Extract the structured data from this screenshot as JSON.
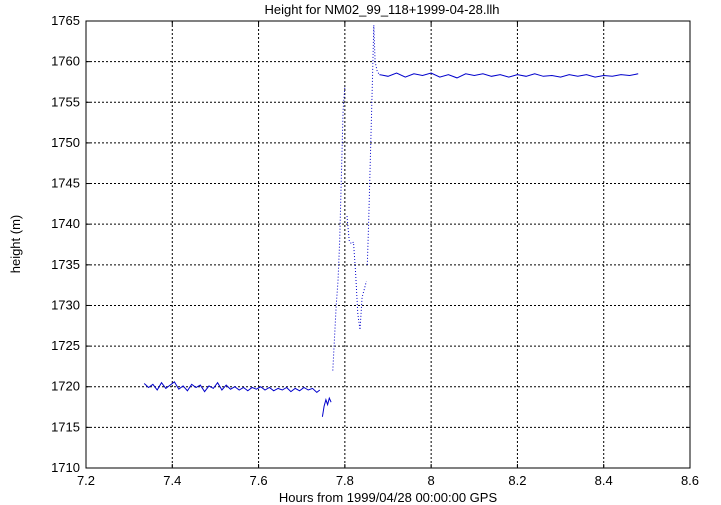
{
  "chart_data": {
    "type": "line",
    "title": "Height for NM02_99_118+1999-04-28.llh",
    "xlabel": "Hours from 1999/04/28 00:00:00 GPS",
    "ylabel": "height (m)",
    "xlim": [
      7.2,
      8.6
    ],
    "ylim": [
      1710,
      1765
    ],
    "xticks": [
      "7.2",
      "7.4",
      "7.6",
      "7.8",
      "8",
      "8.2",
      "8.4",
      "8.6"
    ],
    "yticks": [
      "1710",
      "1715",
      "1720",
      "1725",
      "1730",
      "1735",
      "1740",
      "1745",
      "1750",
      "1755",
      "1760",
      "1765"
    ],
    "grid": true,
    "line_color": "#0000cc",
    "series": [
      {
        "values": [
          [
            7.335,
            1720.4
          ],
          [
            7.345,
            1719.9
          ],
          [
            7.355,
            1720.3
          ],
          [
            7.365,
            1719.6
          ],
          [
            7.375,
            1720.5
          ],
          [
            7.385,
            1719.8
          ],
          [
            7.395,
            1720.2
          ],
          [
            7.405,
            1720.6
          ],
          [
            7.415,
            1719.7
          ],
          [
            7.425,
            1720.1
          ],
          [
            7.435,
            1719.5
          ],
          [
            7.445,
            1720.3
          ],
          [
            7.455,
            1719.9
          ],
          [
            7.465,
            1720.2
          ],
          [
            7.475,
            1719.4
          ],
          [
            7.485,
            1720.1
          ],
          [
            7.495,
            1719.8
          ],
          [
            7.505,
            1720.5
          ],
          [
            7.515,
            1719.6
          ],
          [
            7.525,
            1720.2
          ],
          [
            7.535,
            1719.7
          ],
          [
            7.545,
            1720.0
          ],
          [
            7.555,
            1719.6
          ],
          [
            7.565,
            1719.9
          ],
          [
            7.575,
            1719.5
          ],
          [
            7.585,
            1719.9
          ],
          [
            7.595,
            1719.7
          ],
          [
            7.605,
            1720.0
          ],
          [
            7.615,
            1719.6
          ],
          [
            7.625,
            1719.9
          ],
          [
            7.635,
            1719.5
          ],
          [
            7.645,
            1719.8
          ],
          [
            7.655,
            1719.6
          ],
          [
            7.665,
            1719.9
          ],
          [
            7.675,
            1719.4
          ],
          [
            7.685,
            1719.8
          ],
          [
            7.695,
            1719.5
          ],
          [
            7.705,
            1719.9
          ],
          [
            7.715,
            1719.6
          ],
          [
            7.725,
            1719.8
          ],
          [
            7.735,
            1719.3
          ],
          [
            7.742,
            1719.6
          ]
        ]
      },
      {
        "values": [
          [
            7.748,
            1716.3
          ],
          [
            7.752,
            1717.6
          ],
          [
            7.756,
            1718.4
          ],
          [
            7.76,
            1717.8
          ],
          [
            7.764,
            1718.6
          ],
          [
            7.768,
            1718.1
          ]
        ]
      },
      {
        "values": [
          [
            7.772,
            1722.0
          ],
          [
            7.776,
            1726.0
          ],
          [
            7.78,
            1730.0
          ],
          [
            7.784,
            1733.0
          ],
          [
            7.788,
            1738.0
          ],
          [
            7.792,
            1746.0
          ],
          [
            7.796,
            1754.0
          ],
          [
            7.8,
            1757.0
          ]
        ]
      },
      {
        "values": [
          [
            7.805,
            1741.0
          ],
          [
            7.81,
            1738.0
          ],
          [
            7.815,
            1737.6
          ],
          [
            7.82,
            1737.8
          ],
          [
            7.825,
            1734.0
          ],
          [
            7.83,
            1729.0
          ],
          [
            7.835,
            1727.0
          ],
          [
            7.84,
            1731.0
          ],
          [
            7.845,
            1732.0
          ],
          [
            7.85,
            1733.0
          ]
        ]
      },
      {
        "values": [
          [
            7.852,
            1735.0
          ],
          [
            7.855,
            1740.0
          ],
          [
            7.858,
            1746.0
          ],
          [
            7.861,
            1752.0
          ],
          [
            7.864,
            1758.0
          ],
          [
            7.867,
            1764.5
          ],
          [
            7.87,
            1760.0
          ],
          [
            7.875,
            1758.8
          ],
          [
            7.88,
            1758.4
          ]
        ]
      },
      {
        "values": [
          [
            7.88,
            1758.4
          ],
          [
            7.9,
            1758.2
          ],
          [
            7.92,
            1758.6
          ],
          [
            7.94,
            1758.1
          ],
          [
            7.96,
            1758.5
          ],
          [
            7.98,
            1758.3
          ],
          [
            8.0,
            1758.6
          ],
          [
            8.02,
            1758.1
          ],
          [
            8.04,
            1758.4
          ],
          [
            8.06,
            1758.0
          ],
          [
            8.08,
            1758.5
          ],
          [
            8.1,
            1758.3
          ],
          [
            8.12,
            1758.5
          ],
          [
            8.14,
            1758.2
          ],
          [
            8.16,
            1758.4
          ],
          [
            8.18,
            1758.1
          ],
          [
            8.2,
            1758.4
          ],
          [
            8.22,
            1758.2
          ],
          [
            8.24,
            1758.5
          ],
          [
            8.26,
            1758.2
          ],
          [
            8.28,
            1758.3
          ],
          [
            8.3,
            1758.1
          ],
          [
            8.32,
            1758.4
          ],
          [
            8.34,
            1758.2
          ],
          [
            8.36,
            1758.4
          ],
          [
            8.38,
            1758.1
          ],
          [
            8.4,
            1758.3
          ],
          [
            8.42,
            1758.2
          ],
          [
            8.44,
            1758.4
          ],
          [
            8.46,
            1758.3
          ],
          [
            8.48,
            1758.5
          ]
        ]
      }
    ]
  }
}
